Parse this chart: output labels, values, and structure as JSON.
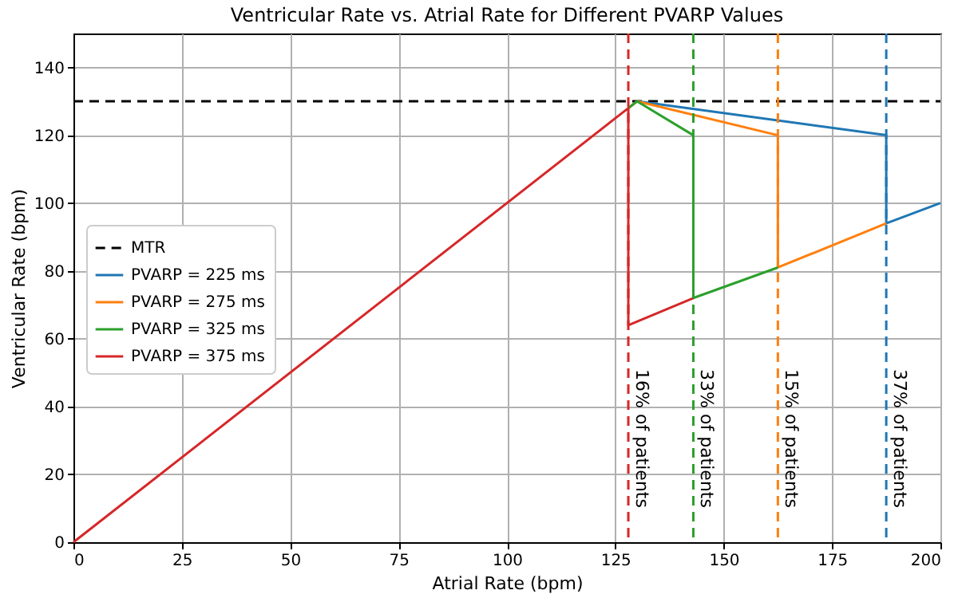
{
  "chart_data": {
    "type": "line",
    "title": "Ventricular Rate vs. Atrial Rate for Different PVARP Values",
    "xlabel": "Atrial Rate (bpm)",
    "ylabel": "Ventricular Rate (bpm)",
    "xlim": [
      0,
      200
    ],
    "xticks": [
      0,
      25,
      50,
      75,
      100,
      125,
      150,
      175,
      200
    ],
    "ylim": [
      0,
      150
    ],
    "yticks": [
      0,
      20,
      40,
      60,
      80,
      100,
      120,
      140
    ],
    "grid": true,
    "legend": "left",
    "line_style": "solid",
    "marker": "none",
    "series": [
      {
        "name": "PVARP = 225 ms",
        "color": "#1f77b4",
        "x": [
          128,
          130,
          187.5,
          187.5,
          200
        ],
        "values": [
          128,
          130,
          120,
          94,
          100
        ]
      },
      {
        "name": "PVARP = 275 ms",
        "color": "#ff7f0e",
        "x": [
          128,
          130,
          162.5,
          162.5,
          187.5
        ],
        "values": [
          128,
          130,
          120,
          81,
          94
        ]
      },
      {
        "name": "PVARP = 325 ms",
        "color": "#2ca02c",
        "x": [
          128,
          130,
          143,
          143,
          162.5
        ],
        "values": [
          128,
          130,
          120,
          72,
          81
        ]
      },
      {
        "name": "PVARP = 375 ms",
        "color": "#d62728",
        "x": [
          0,
          128,
          128,
          143
        ],
        "values": [
          0,
          128,
          64,
          72
        ]
      }
    ],
    "ref_lines": [
      {
        "axis": "y",
        "value": 130,
        "label": "MTR",
        "color": "#000000",
        "line_style": "dashed"
      },
      {
        "axis": "x",
        "value": 128,
        "label": "16% of patients",
        "color": "#d62728",
        "line_style": "dashed"
      },
      {
        "axis": "x",
        "value": 143,
        "label": "33% of patients",
        "color": "#2ca02c",
        "line_style": "dashed"
      },
      {
        "axis": "x",
        "value": 162.5,
        "label": "15% of patients",
        "color": "#ff7f0e",
        "line_style": "dashed"
      },
      {
        "axis": "x",
        "value": 187.5,
        "label": "37% of patients",
        "color": "#1f77b4",
        "line_style": "dashed"
      }
    ]
  }
}
